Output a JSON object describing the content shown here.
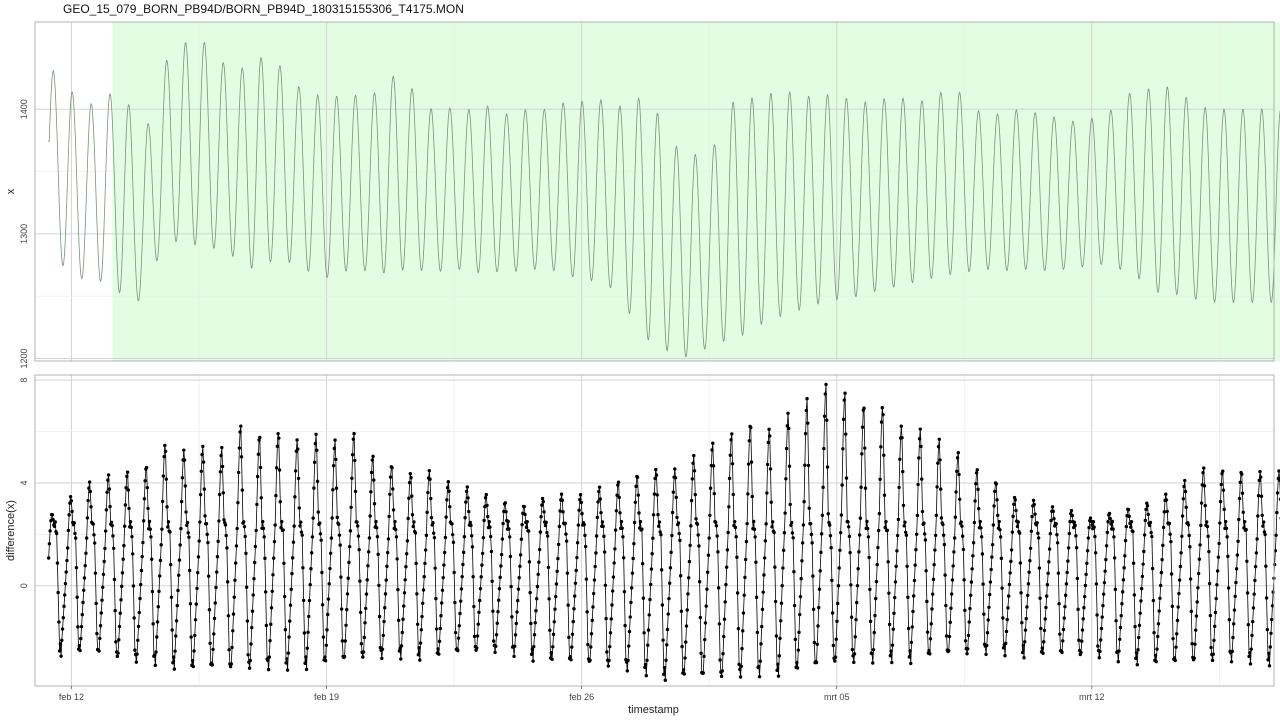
{
  "chart_data": [
    {
      "type": "line",
      "title": "GEO_15_079_BORN_PB94D/BORN_PB94D_180315155306_T4175.MON",
      "xlabel": "",
      "ylabel": "x",
      "x_range": [
        "2018-02-11T09:00",
        "2018-03-18T05:00"
      ],
      "xlim": [
        "2018-02-11T00:00",
        "2018-03-17T00:00"
      ],
      "ylim": [
        1198,
        1470
      ],
      "yticks": [
        1200,
        1300,
        1400
      ],
      "shaded_region": {
        "start": "2018-02-13T03:00",
        "end": "2018-03-17T11:00",
        "color": "#e2fde2"
      },
      "series": [
        {
          "line_color": "#7c927c",
          "cycles_per_day": 1.93,
          "peaks": [
            1435,
            1418,
            1402,
            1412,
            1414,
            1372,
            1435,
            1452,
            1458,
            1440,
            1430,
            1442,
            1440,
            1420,
            1412,
            1410,
            1412,
            1408,
            1428,
            1422,
            1400,
            1402,
            1398,
            1405,
            1395,
            1400,
            1398,
            1405,
            1405,
            1410,
            1400,
            1410,
            1405,
            1372,
            1365,
            1360,
            1405,
            1408,
            1412,
            1415,
            1410,
            1412,
            1410,
            1405,
            1408,
            1410,
            1405,
            1412,
            1418,
            1400,
            1395,
            1400,
            1398,
            1395,
            1390,
            1392,
            1395,
            1412,
            1415,
            1420,
            1412,
            1402,
            1400
          ],
          "troughs": [
            1288,
            1270,
            1262,
            1262,
            1250,
            1245,
            1290,
            1295,
            1290,
            1288,
            1280,
            1270,
            1280,
            1276,
            1268,
            1264,
            1272,
            1270,
            1268,
            1272,
            1270,
            1270,
            1272,
            1268,
            1270,
            1270,
            1272,
            1270,
            1264,
            1262,
            1255,
            1230,
            1210,
            1205,
            1200,
            1210,
            1215,
            1220,
            1230,
            1235,
            1240,
            1245,
            1248,
            1250,
            1255,
            1258,
            1262,
            1265,
            1268,
            1270,
            1272,
            1270,
            1272,
            1270,
            1272,
            1274,
            1276,
            1270,
            1262,
            1250,
            1252,
            1246,
            1245
          ],
          "start_value": 1375,
          "end_value": 1400
        }
      ]
    },
    {
      "type": "line",
      "title": "",
      "xlabel": "timestamp",
      "ylabel": "difference(x)",
      "x_range": [
        "2018-02-11T09:00",
        "2018-03-18T05:00"
      ],
      "xlim": [
        "2018-02-11T00:00",
        "2018-03-17T00:00"
      ],
      "ylim": [
        -3.9,
        8.2
      ],
      "yticks": [
        0,
        4,
        8
      ],
      "xticks": [
        {
          "date": "2018-02-12",
          "label": "feb 12"
        },
        {
          "date": "2018-02-19",
          "label": "feb 19"
        },
        {
          "date": "2018-02-26",
          "label": "feb 26"
        },
        {
          "date": "2018-03-05",
          "label": "mrt 05"
        },
        {
          "date": "2018-03-12",
          "label": "mrt 12"
        }
      ],
      "series": [
        {
          "line_color": "#000000",
          "marker": "point",
          "cycles_per_day": 1.93,
          "positive_peaks": [
            2.7,
            3.4,
            4.0,
            4.3,
            4.4,
            4.5,
            5.6,
            5.3,
            5.5,
            5.2,
            6.3,
            5.8,
            6.1,
            5.7,
            6.0,
            5.6,
            6.1,
            5.1,
            4.8,
            4.4,
            4.6,
            4.1,
            3.9,
            3.6,
            3.3,
            3.1,
            3.4,
            3.6,
            3.5,
            3.8,
            4.0,
            4.3,
            4.6,
            4.5,
            5.0,
            5.5,
            5.8,
            6.4,
            6.1,
            6.7,
            7.2,
            7.9,
            7.6,
            7.0,
            7.2,
            6.3,
            6.2,
            5.8,
            5.3,
            4.6,
            4.2,
            3.5,
            3.4,
            3.1,
            3.0,
            2.6,
            2.8,
            3.0,
            3.2,
            3.5,
            4.0,
            4.6,
            4.5
          ],
          "mid_level": 2.2,
          "negative_troughs": [
            -2.6,
            -2.5,
            -2.6,
            -2.7,
            -2.9,
            -3.0,
            -3.0,
            -3.1,
            -3.2,
            -3.2,
            -3.3,
            -3.2,
            -3.2,
            -3.1,
            -3.0,
            -3.0,
            -2.9,
            -2.8,
            -2.8,
            -2.7,
            -2.7,
            -2.7,
            -2.6,
            -2.6,
            -2.6,
            -2.7,
            -2.8,
            -2.9,
            -3.0,
            -3.1,
            -3.2,
            -3.3,
            -3.4,
            -3.5,
            -3.5,
            -3.6,
            -3.6,
            -3.5,
            -3.4,
            -3.3,
            -3.2,
            -3.1,
            -3.0,
            -3.0,
            -2.9,
            -2.8,
            -2.8,
            -2.7,
            -2.7,
            -2.7,
            -2.6,
            -2.6,
            -2.6,
            -2.7,
            -2.7,
            -2.8,
            -2.8,
            -2.9,
            -2.9,
            -3.0,
            -3.0,
            -3.0,
            -2.9
          ]
        }
      ]
    }
  ]
}
